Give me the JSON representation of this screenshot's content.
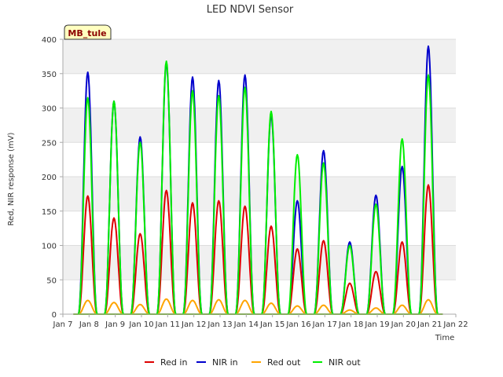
{
  "chart_data": {
    "type": "line",
    "title": "LED NDVI Sensor",
    "xlabel": "Time",
    "ylabel": "Red, NIR response (mV)",
    "ylim": [
      0,
      400
    ],
    "yticks": [
      0,
      50,
      100,
      150,
      200,
      250,
      300,
      350,
      400
    ],
    "xlim": [
      7,
      22
    ],
    "xticks": [
      7,
      8,
      9,
      10,
      11,
      12,
      13,
      14,
      15,
      16,
      17,
      18,
      19,
      20,
      21,
      22
    ],
    "xtick_labels": [
      "Jan 7",
      "Jan 8",
      "Jan 9",
      "Jan 10",
      "Jan 11",
      "Jan 12",
      "Jan 13",
      "Jan 14",
      "Jan 15",
      "Jan 16",
      "Jan 17",
      "Jan 18",
      "Jan 19",
      "Jan 20",
      "Jan 21",
      "Jan 22"
    ],
    "grid": true,
    "legend_position": "bottom",
    "site_label": "MB_tule",
    "days": [
      8,
      9,
      10,
      11,
      12,
      13,
      14,
      15,
      16,
      17,
      18,
      19,
      20,
      21
    ],
    "series": [
      {
        "name": "Red in",
        "color": "#dd0000",
        "peaks": [
          172,
          140,
          117,
          180,
          162,
          165,
          157,
          128,
          95,
          107,
          45,
          62,
          105,
          188
        ]
      },
      {
        "name": "NIR in",
        "color": "#0000cc",
        "peaks": [
          352,
          310,
          258,
          365,
          345,
          340,
          348,
          290,
          165,
          238,
          105,
          173,
          215,
          390
        ]
      },
      {
        "name": "Red out",
        "color": "#ffa500",
        "peaks": [
          20,
          17,
          14,
          22,
          20,
          21,
          20,
          16,
          12,
          13,
          6,
          9,
          13,
          21
        ]
      },
      {
        "name": "NIR out",
        "color": "#00ee00",
        "peaks": [
          315,
          310,
          250,
          368,
          325,
          318,
          330,
          295,
          232,
          220,
          100,
          160,
          255,
          348
        ]
      }
    ]
  }
}
